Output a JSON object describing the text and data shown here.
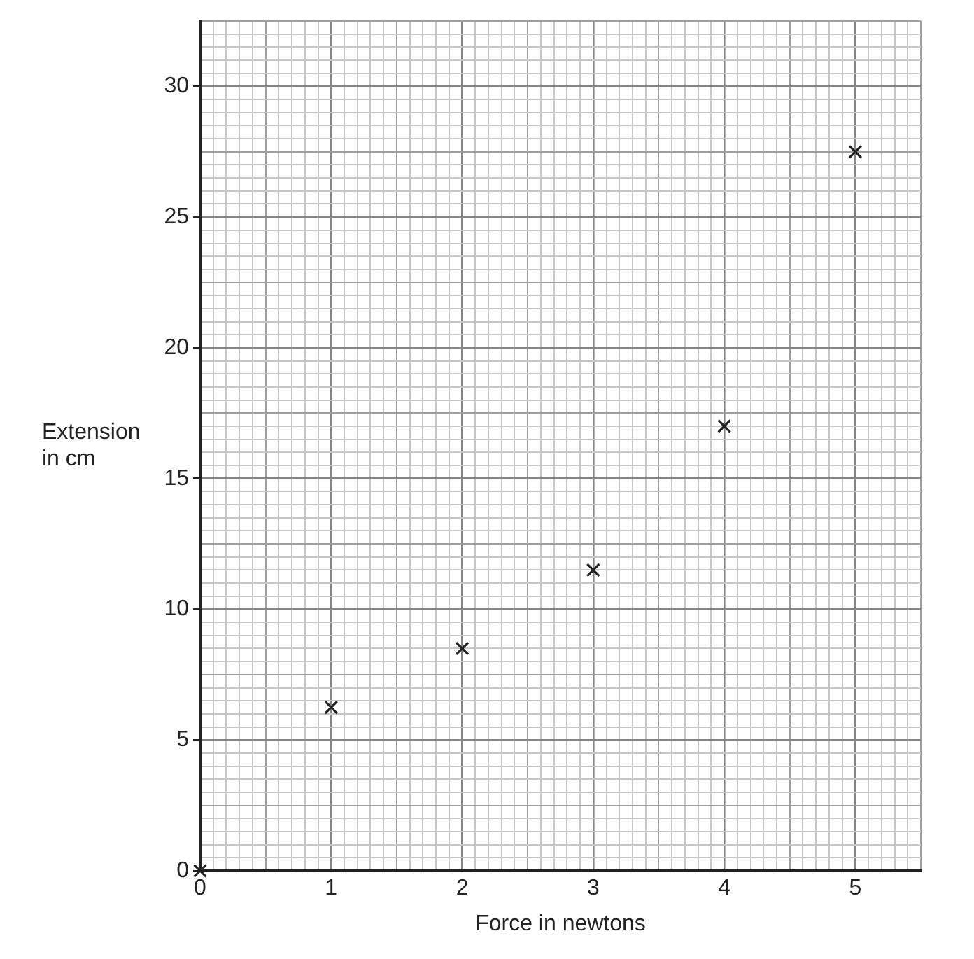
{
  "chart_data": {
    "type": "scatter",
    "xlabel": "Force in newtons",
    "ylabel": "Extension in cm",
    "x": [
      0,
      1,
      2,
      3,
      4,
      5
    ],
    "series": [
      {
        "color": "#222222",
        "values": [
          0,
          6.25,
          8.5,
          11.5,
          17,
          27.5
        ]
      }
    ],
    "marker": "cross",
    "grid": true,
    "xlim": [
      0,
      5.5
    ],
    "xticks": [
      0,
      {
        "value": 0.1,
        "label": null
      },
      {
        "value": 0.2,
        "label": null
      },
      {
        "value": 0.3,
        "label": null
      },
      {
        "value": 0.4,
        "label": null
      },
      {
        "value": 0.5,
        "label": null
      },
      {
        "value": 0.6,
        "label": null
      },
      {
        "value": 0.7,
        "label": null
      },
      {
        "value": 0.8,
        "label": null
      },
      {
        "value": 0.9,
        "label": null
      },
      1,
      {
        "value": 1.1,
        "label": null
      },
      {
        "value": 1.2,
        "label": null
      },
      {
        "value": 1.3,
        "label": null
      },
      {
        "value": 1.4,
        "label": null
      },
      {
        "value": 1.5,
        "label": null
      },
      {
        "value": 1.6,
        "label": null
      },
      {
        "value": 1.7,
        "label": null
      },
      {
        "value": 1.8,
        "label": null
      },
      {
        "value": 1.9,
        "label": null
      },
      2,
      {
        "value": 2.1,
        "label": null
      },
      {
        "value": 2.2,
        "label": null
      },
      {
        "value": 2.3,
        "label": null
      },
      {
        "value": 2.4,
        "label": null
      },
      {
        "value": 2.5,
        "label": null
      },
      {
        "value": 2.6,
        "label": null
      },
      {
        "value": 2.7,
        "label": null
      },
      {
        "value": 2.8,
        "label": null
      },
      {
        "value": 2.9,
        "label": null
      },
      3,
      {
        "value": 3.1,
        "label": null
      },
      {
        "value": 3.2,
        "label": null
      },
      {
        "value": 3.3,
        "label": null
      },
      {
        "value": 3.4,
        "label": null
      },
      {
        "value": 3.5,
        "label": null
      },
      {
        "value": 3.6,
        "label": null
      },
      {
        "value": 3.7,
        "label": null
      },
      {
        "value": 3.8,
        "label": null
      },
      {
        "value": 3.9,
        "label": null
      },
      4,
      {
        "value": 4.1,
        "label": null
      },
      {
        "value": 4.2,
        "label": null
      },
      {
        "value": 4.3,
        "label": null
      },
      {
        "value": 4.4,
        "label": null
      },
      {
        "value": 4.5,
        "label": null
      },
      {
        "value": 4.6,
        "label": null
      },
      {
        "value": 4.7,
        "label": null
      },
      {
        "value": 4.8,
        "label": null
      },
      {
        "value": 4.9,
        "label": null
      },
      5,
      {
        "value": 5.1,
        "label": null
      },
      {
        "value": 5.2,
        "label": null
      },
      {
        "value": 5.3,
        "label": null
      },
      {
        "value": 5.4,
        "label": null
      },
      {
        "value": 5.5,
        "label": null
      }
    ],
    "ylim": [
      0,
      32.5
    ],
    "yticks": [
      0,
      {
        "value": 0.5,
        "label": null
      },
      {
        "value": 1,
        "label": null
      },
      {
        "value": 1.5,
        "label": null
      },
      {
        "value": 2,
        "label": null
      },
      {
        "value": 2.5,
        "label": null
      },
      {
        "value": 3,
        "label": null
      },
      {
        "value": 3.5,
        "label": null
      },
      {
        "value": 4,
        "label": null
      },
      {
        "value": 4.5,
        "label": null
      },
      5,
      {
        "value": 5.5,
        "label": null
      },
      {
        "value": 6,
        "label": null
      },
      {
        "value": 6.5,
        "label": null
      },
      {
        "value": 7,
        "label": null
      },
      {
        "value": 7.5,
        "label": null
      },
      {
        "value": 8,
        "label": null
      },
      {
        "value": 8.5,
        "label": null
      },
      {
        "value": 9,
        "label": null
      },
      {
        "value": 9.5,
        "label": null
      },
      10,
      {
        "value": 10.5,
        "label": null
      },
      {
        "value": 11,
        "label": null
      },
      {
        "value": 11.5,
        "label": null
      },
      {
        "value": 12,
        "label": null
      },
      {
        "value": 12.5,
        "label": null
      },
      {
        "value": 13,
        "label": null
      },
      {
        "value": 13.5,
        "label": null
      },
      {
        "value": 14,
        "label": null
      },
      {
        "value": 14.5,
        "label": null
      },
      15,
      {
        "value": 15.5,
        "label": null
      },
      {
        "value": 16,
        "label": null
      },
      {
        "value": 16.5,
        "label": null
      },
      {
        "value": 17,
        "label": null
      },
      {
        "value": 17.5,
        "label": null
      },
      {
        "value": 18,
        "label": null
      },
      {
        "value": 18.5,
        "label": null
      },
      {
        "value": 19,
        "label": null
      },
      {
        "value": 19.5,
        "label": null
      },
      20,
      {
        "value": 20.5,
        "label": null
      },
      {
        "value": 21,
        "label": null
      },
      {
        "value": 21.5,
        "label": null
      },
      {
        "value": 22,
        "label": null
      },
      {
        "value": 22.5,
        "label": null
      },
      {
        "value": 23,
        "label": null
      },
      {
        "value": 23.5,
        "label": null
      },
      {
        "value": 24,
        "label": null
      },
      {
        "value": 24.5,
        "label": null
      },
      25,
      {
        "value": 25.5,
        "label": null
      },
      {
        "value": 26,
        "label": null
      },
      {
        "value": 26.5,
        "label": null
      },
      {
        "value": 27,
        "label": null
      },
      {
        "value": 27.5,
        "label": null
      },
      {
        "value": 28,
        "label": null
      },
      {
        "value": 28.5,
        "label": null
      },
      {
        "value": 29,
        "label": null
      },
      {
        "value": 29.5,
        "label": null
      },
      30,
      {
        "value": 30.5,
        "label": null
      },
      {
        "value": 31,
        "label": null
      },
      {
        "value": 31.5,
        "label": null
      },
      {
        "value": 32,
        "label": null
      },
      {
        "value": 32.5,
        "label": null
      }
    ]
  }
}
